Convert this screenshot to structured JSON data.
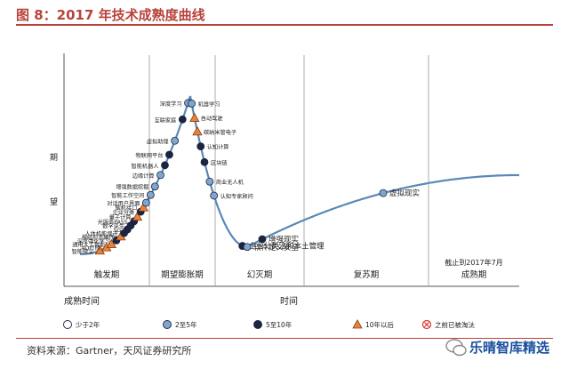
{
  "header": {
    "title": "图 8：2017 年技术成熟度曲线"
  },
  "footer": {
    "source": "资料来源：Gartner，天风证券研究所",
    "watermark": "乐晴智库精选"
  },
  "chart_data": {
    "type": "scatter",
    "ylabel": "期望",
    "xlabel": "时间",
    "y_label_chars": [
      "期",
      "望"
    ],
    "phases": [
      "触发期",
      "期望膨胀期",
      "幻灭期",
      "复苏期",
      "成熟期"
    ],
    "corner_labels": {
      "bottom_left": "成熟时间",
      "top_right_note": "截止到2017年7月"
    },
    "legend": [
      {
        "key": "lt2",
        "label": "少于2年",
        "shape": "circle",
        "fill": "#ffffff"
      },
      {
        "key": "2to5",
        "label": "2至5年",
        "shape": "circle",
        "fill": "#7fa6cf"
      },
      {
        "key": "5to10",
        "label": "5至10年",
        "shape": "circle",
        "fill": "#1c2440"
      },
      {
        "key": "gt10",
        "label": "10年以后",
        "shape": "triangle",
        "fill": "#e8833a"
      },
      {
        "key": "obsolete",
        "label": "之前已被淘汰",
        "shape": "x-circle",
        "fill": "#d9342b"
      }
    ],
    "points": [
      {
        "label": "智能微尘",
        "t": 0.18,
        "class": "gt10"
      },
      {
        "label": "4D打印",
        "t": 0.24,
        "class": "gt10"
      },
      {
        "label": "通用人工智能",
        "t": 0.285,
        "class": "gt10"
      },
      {
        "label": "深度强化学习",
        "t": 0.33,
        "class": "5to10"
      },
      {
        "label": "神经形态硬件",
        "t": 0.37,
        "class": "gt10"
      },
      {
        "label": "人体机能增进",
        "t": 0.4,
        "class": "5to10"
      },
      {
        "label": "5G",
        "t": 0.43,
        "class": "5to10"
      },
      {
        "label": "数字孪生",
        "t": 0.46,
        "class": "5to10"
      },
      {
        "label": "光服务PASS",
        "t": 0.49,
        "class": "5to10"
      },
      {
        "label": "量子计算",
        "t": 0.52,
        "class": "gt10"
      },
      {
        "label": "企业分类",
        "t": 0.55,
        "class": "5to10"
      },
      {
        "label": "脑机接口",
        "t": 0.575,
        "class": "gt10"
      },
      {
        "label": "对话用户界面",
        "t": 0.6,
        "class": "2to5"
      },
      {
        "label": "智能工作空间",
        "t": 0.64,
        "class": "2to5"
      },
      {
        "label": "增强数据挖掘",
        "t": 0.68,
        "class": "2to5"
      },
      {
        "label": "边缘计算",
        "t": 0.73,
        "class": "2to5"
      },
      {
        "label": "智能机器人",
        "t": 0.77,
        "class": "5to10"
      },
      {
        "label": "物联网平台",
        "t": 0.81,
        "class": "5to10"
      },
      {
        "label": "虚拟助理",
        "t": 0.86,
        "class": "2to5"
      },
      {
        "label": "互联家庭",
        "t": 0.93,
        "class": "5to10"
      },
      {
        "label": "深度学习",
        "t": 0.98,
        "class": "2to5"
      },
      {
        "label": "机器学习",
        "t": 1.03,
        "class": "2to5"
      },
      {
        "label": "自动驾驶",
        "t": 1.09,
        "class": "gt10"
      },
      {
        "label": "碳纳米管电子",
        "t": 1.15,
        "class": "gt10"
      },
      {
        "label": "认知计算",
        "t": 1.22,
        "class": "5to10"
      },
      {
        "label": "区块链",
        "t": 1.3,
        "class": "5to10"
      },
      {
        "label": "商业无人机",
        "t": 1.41,
        "class": "2to5"
      },
      {
        "label": "认知专家顾问",
        "t": 1.5,
        "class": "2to5"
      },
      {
        "label": "企业分类法和本土管理",
        "t": 2.1,
        "class": "5to10"
      },
      {
        "label": "软件定义安全",
        "t": 2.2,
        "class": "2to5"
      },
      {
        "label": "增强现实",
        "t": 2.3,
        "class": "5to10"
      },
      {
        "label": "虚拟现实",
        "t": 3.1,
        "class": "2to5"
      }
    ]
  }
}
